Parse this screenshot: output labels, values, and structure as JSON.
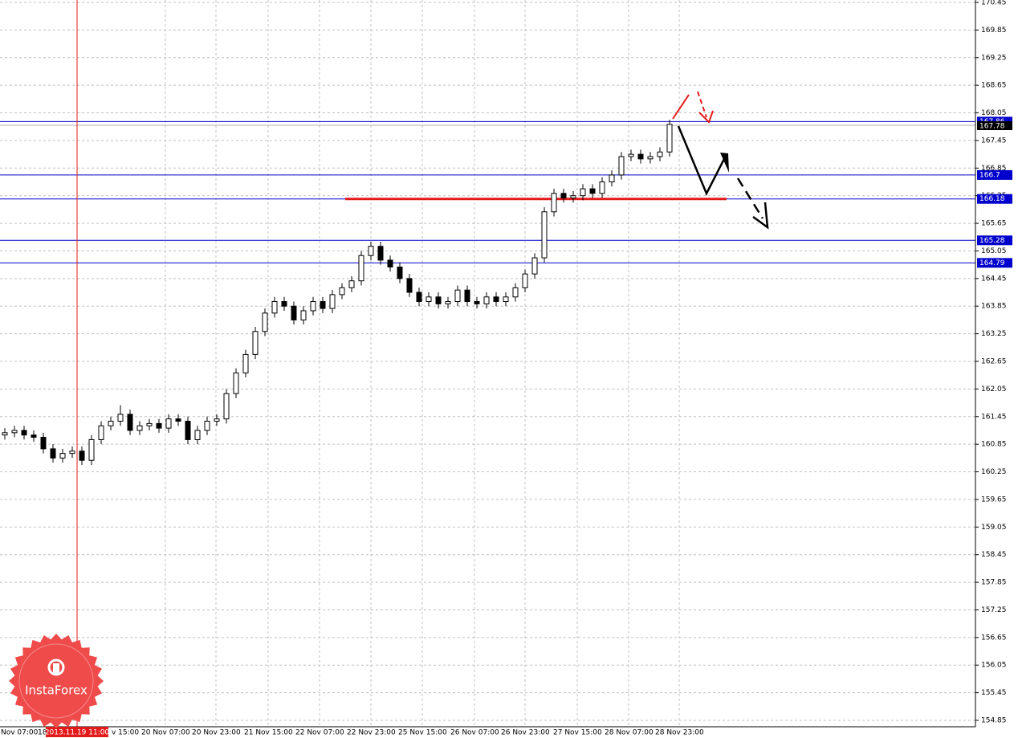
{
  "chart_data": {
    "type": "candlestick",
    "ylim": [
      154.85,
      170.45
    ],
    "yticks": [
      170.45,
      169.85,
      169.25,
      168.65,
      168.05,
      167.45,
      166.85,
      166.25,
      165.65,
      165.05,
      164.45,
      163.85,
      163.25,
      162.65,
      162.05,
      161.45,
      160.85,
      160.25,
      159.65,
      159.05,
      158.45,
      157.85,
      157.25,
      156.65,
      156.05,
      155.45,
      154.85
    ],
    "grid": true,
    "x_labels": [
      "Nov 07:00",
      "18",
      "v 15:00",
      "20 Nov 07:00",
      "20 Nov 23:00",
      "21 Nov 15:00",
      "22 Nov 07:00",
      "22 Nov 23:00",
      "25 Nov 15:00",
      "26 Nov 07:00",
      "26 Nov 23:00",
      "27 Nov 15:00",
      "28 Nov 07:00",
      "28 Nov 23:00"
    ],
    "cursor_label": "2013.11.19 11:00",
    "levels": [
      167.86,
      166.7,
      166.18,
      165.28,
      164.79
    ],
    "level_color": "#0000cc",
    "current_price": 167.78,
    "support_color": "#e31a1a",
    "watermark": "InstaForex",
    "open": [
      161.05,
      161.1,
      161.15,
      161.05,
      161.0,
      160.75,
      160.55,
      160.65,
      160.7,
      160.5,
      160.95,
      161.25,
      161.35,
      161.5,
      161.15,
      161.25,
      161.3,
      161.2,
      161.4,
      161.35,
      160.95,
      161.15,
      161.35,
      161.4,
      161.95,
      162.4,
      162.8,
      163.3,
      163.7,
      163.95,
      163.85,
      163.55,
      163.75,
      163.95,
      163.8,
      164.1,
      164.25,
      164.4,
      164.95,
      165.15,
      164.85,
      164.7,
      164.45,
      164.15,
      163.95,
      164.05,
      163.9,
      163.95,
      164.2,
      163.95,
      163.9,
      164.05,
      163.95,
      164.05,
      164.25,
      164.55,
      164.9,
      165.9,
      166.3,
      166.2,
      166.25,
      166.4,
      166.3,
      166.55,
      166.7,
      167.1,
      167.15,
      167.05,
      167.1,
      167.2
    ],
    "high": [
      161.2,
      161.25,
      161.25,
      161.15,
      161.1,
      160.85,
      160.75,
      160.8,
      160.8,
      161.05,
      161.35,
      161.45,
      161.7,
      161.6,
      161.35,
      161.4,
      161.4,
      161.5,
      161.5,
      161.45,
      161.25,
      161.45,
      161.5,
      162.05,
      162.5,
      162.9,
      163.4,
      163.8,
      164.05,
      164.05,
      163.95,
      163.85,
      164.05,
      164.05,
      164.2,
      164.35,
      164.5,
      165.05,
      165.25,
      165.25,
      164.95,
      164.8,
      164.55,
      164.25,
      164.15,
      164.15,
      164.05,
      164.3,
      164.3,
      164.05,
      164.15,
      164.15,
      164.15,
      164.35,
      164.65,
      165.0,
      166.0,
      166.4,
      166.4,
      166.35,
      166.5,
      166.5,
      166.65,
      166.8,
      167.2,
      167.25,
      167.25,
      167.2,
      167.3,
      167.9
    ],
    "low": [
      160.95,
      161.0,
      160.95,
      160.9,
      160.65,
      160.45,
      160.45,
      160.55,
      160.4,
      160.4,
      160.85,
      161.15,
      161.25,
      161.05,
      161.05,
      161.15,
      161.1,
      161.1,
      161.25,
      160.85,
      160.85,
      161.05,
      161.25,
      161.3,
      161.85,
      162.3,
      162.7,
      163.2,
      163.6,
      163.75,
      163.45,
      163.45,
      163.65,
      163.7,
      163.7,
      164.0,
      164.15,
      164.3,
      164.85,
      164.75,
      164.6,
      164.35,
      164.05,
      163.85,
      163.85,
      163.8,
      163.8,
      163.85,
      163.85,
      163.8,
      163.8,
      163.85,
      163.85,
      163.95,
      164.15,
      164.45,
      164.8,
      165.8,
      166.1,
      166.1,
      166.15,
      166.2,
      166.2,
      166.45,
      166.6,
      167.0,
      166.95,
      166.95,
      167.0,
      167.1
    ],
    "close": [
      161.1,
      161.15,
      161.05,
      161.0,
      160.75,
      160.55,
      160.65,
      160.7,
      160.5,
      160.95,
      161.25,
      161.35,
      161.5,
      161.15,
      161.25,
      161.3,
      161.2,
      161.4,
      161.35,
      160.95,
      161.15,
      161.35,
      161.4,
      161.95,
      162.4,
      162.8,
      163.3,
      163.7,
      163.95,
      163.85,
      163.55,
      163.75,
      163.95,
      163.8,
      164.1,
      164.25,
      164.4,
      164.95,
      165.15,
      164.85,
      164.7,
      164.45,
      164.15,
      163.95,
      164.05,
      163.9,
      163.95,
      164.2,
      163.95,
      163.9,
      164.05,
      163.95,
      164.05,
      164.25,
      164.55,
      164.9,
      165.9,
      166.3,
      166.2,
      166.25,
      166.4,
      166.3,
      166.55,
      166.7,
      167.1,
      167.15,
      167.05,
      167.1,
      167.2,
      167.8
    ]
  }
}
